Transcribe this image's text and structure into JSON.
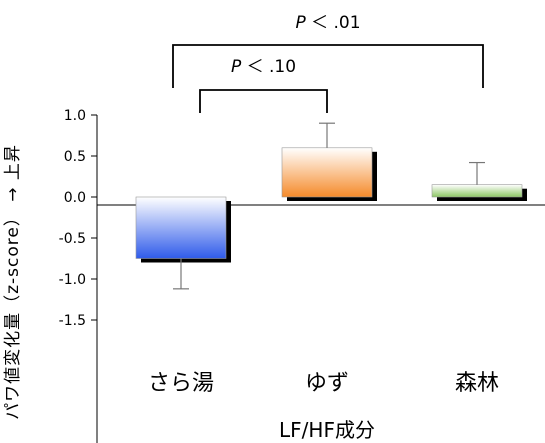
{
  "chart_data": {
    "type": "bar",
    "categories": [
      "さら湯",
      "ゆず",
      "森林"
    ],
    "values": [
      -0.75,
      0.6,
      0.15
    ],
    "errors": [
      0.37,
      0.3,
      0.27
    ],
    "xlabel": "LF/HF成分",
    "ylabel": "パワ値変化量（z-score） → 上昇",
    "ylim": [
      -1.5,
      1.0
    ],
    "yticks": [
      "1.0",
      "0.5",
      "0.0",
      "-0.5",
      "-1.0",
      "-1.5"
    ],
    "significance": [
      {
        "label_italic": "P",
        "label_rest": "＜ .10",
        "pair": [
          0,
          1
        ]
      },
      {
        "label_italic": "P",
        "label_rest": "＜ .01",
        "pair": [
          0,
          2
        ]
      }
    ],
    "colors": {
      "さら湯": "#2f5bea",
      "ゆず": "#f58a2a",
      "森林": "#8cc663"
    },
    "grid": false
  }
}
